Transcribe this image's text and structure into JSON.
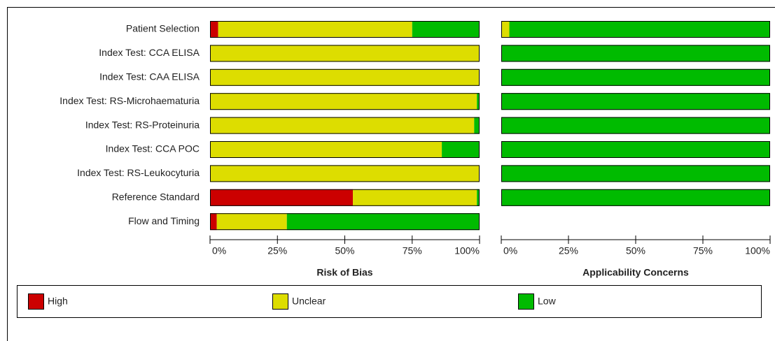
{
  "chart_data": [
    {
      "type": "bar",
      "stacked": true,
      "orientation": "horizontal",
      "title": "Risk of Bias",
      "categories": [
        "Patient Selection",
        "Index Test: CCA ELISA",
        "Index Test: CAA ELISA",
        "Index Test: RS-Microhaematuria",
        "Index Test: RS-Proteinuria",
        "Index Test: CCA POC",
        "Index Test: RS-Leukocyturia",
        "Reference Standard",
        "Flow and Timing"
      ],
      "series": [
        {
          "name": "High",
          "color": "#cc0000",
          "values": [
            3,
            0,
            0,
            0,
            0,
            0,
            0,
            53,
            2.5
          ]
        },
        {
          "name": "Unclear",
          "color": "#dddd00",
          "values": [
            72,
            100,
            100,
            99,
            98,
            86,
            100,
            46,
            26
          ]
        },
        {
          "name": "Low",
          "color": "#00bb00",
          "values": [
            25,
            0,
            0,
            1,
            2,
            14,
            0,
            1,
            71.5
          ]
        }
      ],
      "xlim": [
        0,
        100
      ],
      "xticks": [
        {
          "value": 0,
          "label": "0%"
        },
        {
          "value": 25,
          "label": "25%"
        },
        {
          "value": 50,
          "label": "50%"
        },
        {
          "value": 75,
          "label": "75%"
        },
        {
          "value": 100,
          "label": "100%"
        }
      ]
    },
    {
      "type": "bar",
      "stacked": true,
      "orientation": "horizontal",
      "title": "Applicability Concerns",
      "series": [
        {
          "name": "High",
          "color": "#cc0000",
          "values": [
            0,
            0,
            0,
            0,
            0,
            0,
            0,
            0,
            null
          ]
        },
        {
          "name": "Unclear",
          "color": "#dddd00",
          "values": [
            3,
            0,
            0,
            0,
            0,
            0,
            0,
            0,
            null
          ]
        },
        {
          "name": "Low",
          "color": "#00bb00",
          "values": [
            97,
            100,
            100,
            100,
            100,
            100,
            100,
            100,
            null
          ]
        }
      ],
      "xlim": [
        0,
        100
      ],
      "xticks": [
        {
          "value": 0,
          "label": "0%"
        },
        {
          "value": 25,
          "label": "25%"
        },
        {
          "value": 50,
          "label": "50%"
        },
        {
          "value": 75,
          "label": "75%"
        },
        {
          "value": 100,
          "label": "100%"
        }
      ]
    }
  ]
}
